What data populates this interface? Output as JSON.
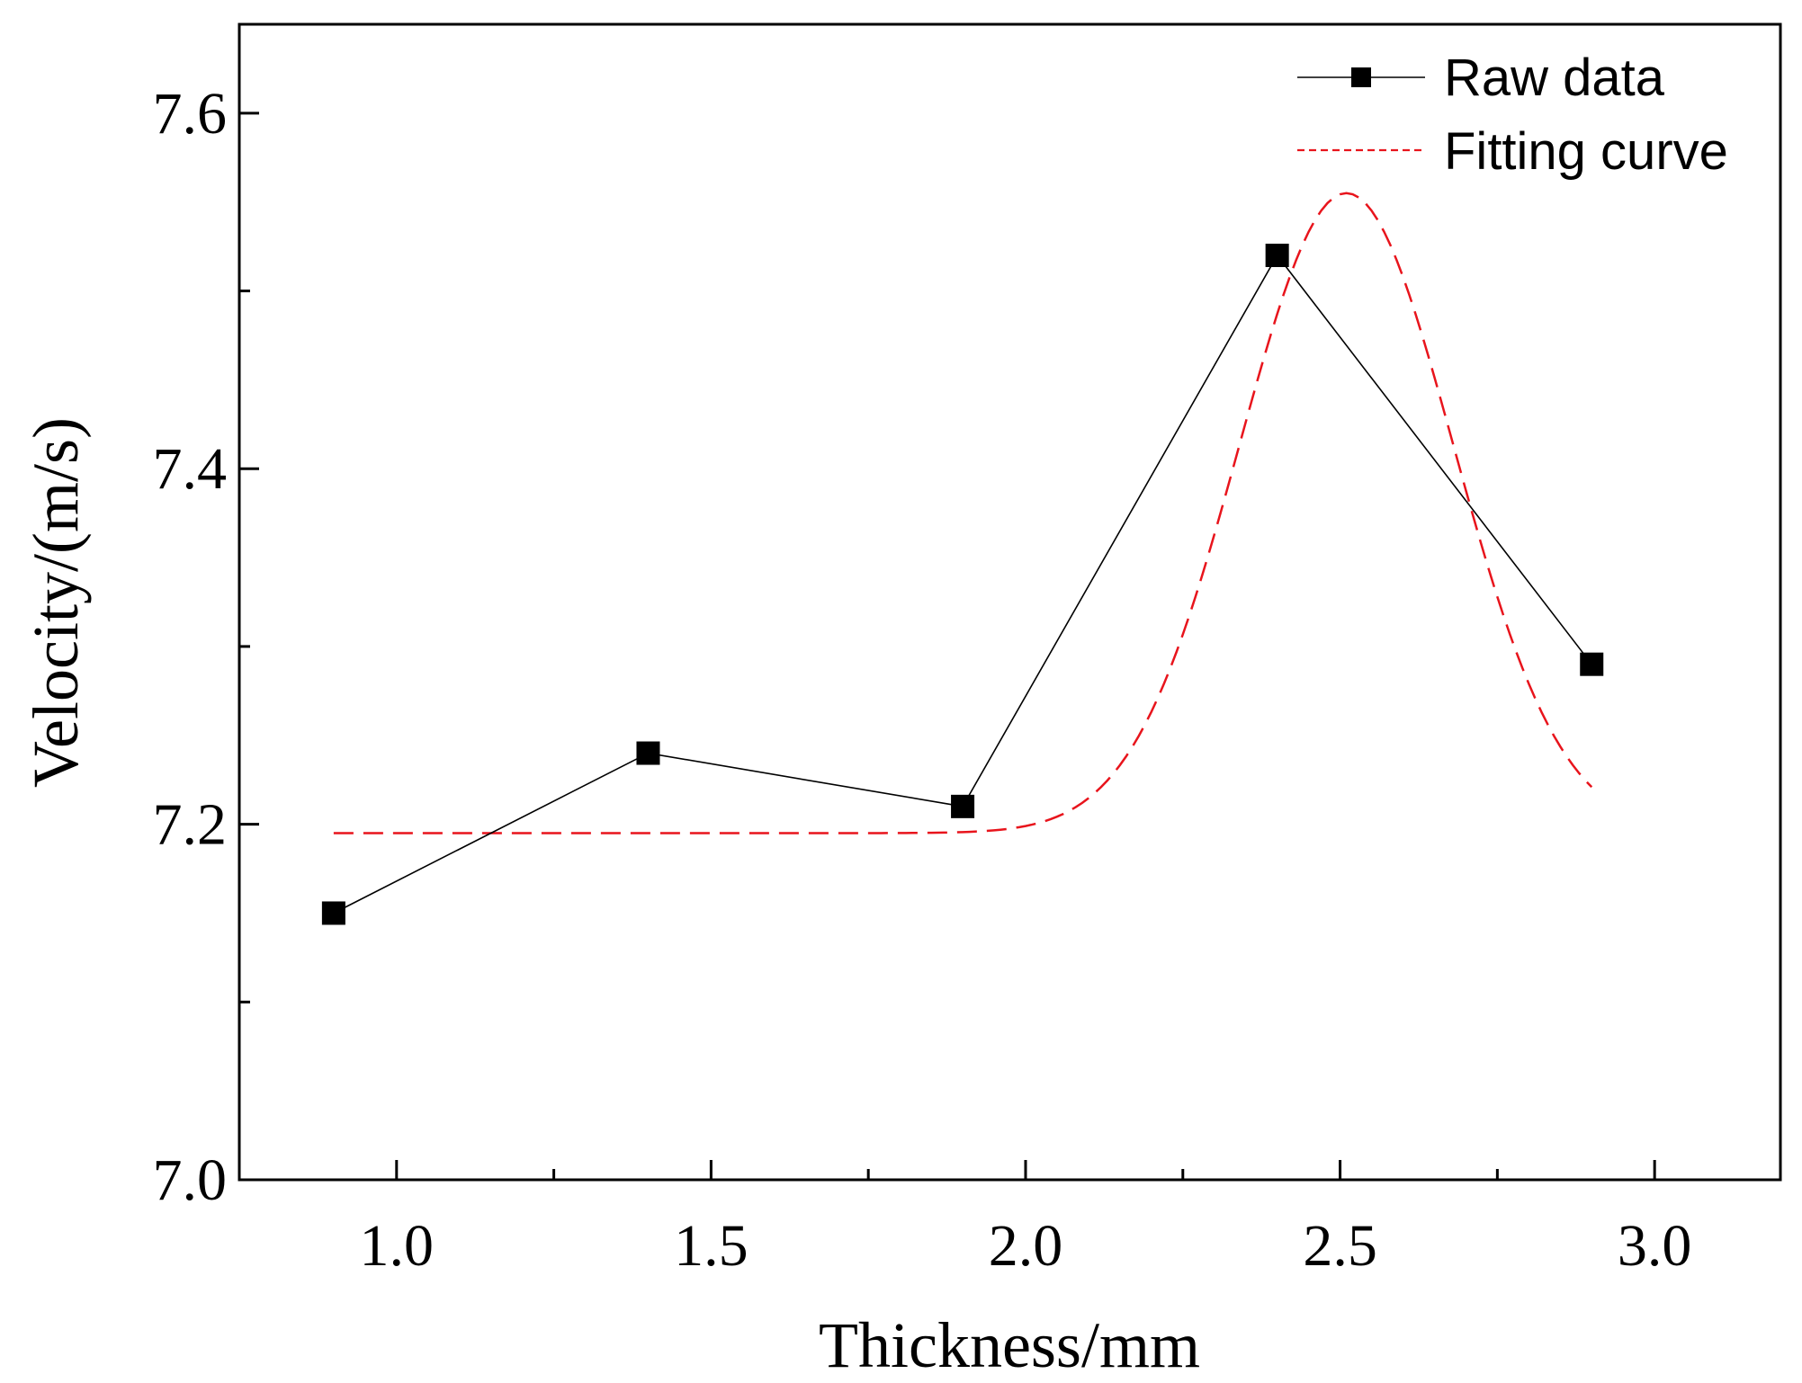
{
  "chart_data": {
    "type": "line",
    "title": "",
    "xlabel": "Thickness/mm",
    "ylabel": "Velocity/(m/s)",
    "xlim": [
      0.75,
      3.2
    ],
    "ylim": [
      7.0,
      7.65
    ],
    "x_ticks": [
      1.0,
      1.5,
      2.0,
      2.5,
      3.0
    ],
    "x_tick_labels": [
      "1.0",
      "1.5",
      "2.0",
      "2.5",
      "3.0"
    ],
    "x_minor_ticks": [
      1.25,
      1.75,
      2.25,
      2.75
    ],
    "y_ticks": [
      7.0,
      7.2,
      7.4,
      7.6
    ],
    "y_tick_labels": [
      "7.0",
      "7.2",
      "7.4",
      "7.6"
    ],
    "y_minor_ticks": [
      7.1,
      7.3,
      7.5
    ],
    "grid": false,
    "legend_position": "top-right",
    "series": [
      {
        "name": "Raw data",
        "style": "line-square-markers",
        "color": "#000000",
        "x": [
          0.9,
          1.4,
          1.9,
          2.4,
          2.9
        ],
        "y": [
          7.15,
          7.24,
          7.21,
          7.52,
          7.29
        ]
      },
      {
        "name": "Fitting curve",
        "style": "dashed",
        "color": "#e8141c",
        "model": "gaussian",
        "x_range": [
          0.9,
          2.9
        ],
        "y0": 7.195,
        "amplitude": 0.36,
        "center": 2.51,
        "sigma": 0.17
      }
    ]
  }
}
